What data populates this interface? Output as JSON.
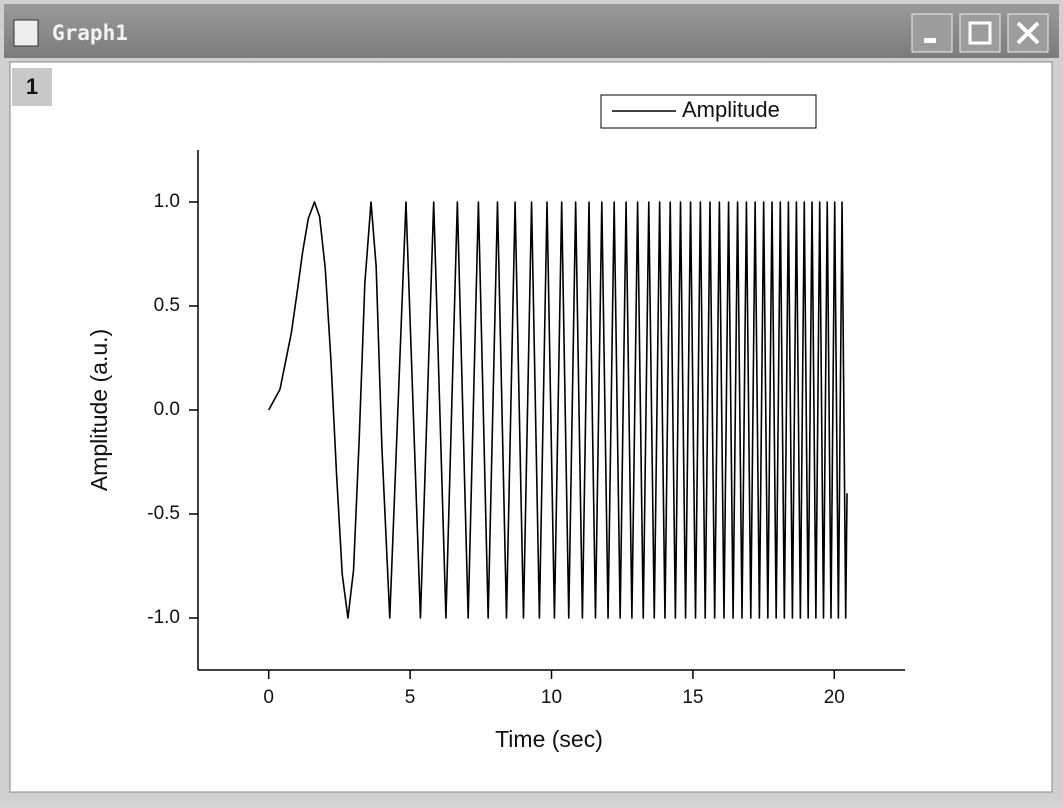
{
  "window": {
    "title": "Graph1",
    "layer": "1"
  },
  "chart_data": {
    "type": "line",
    "x_label": "Time (sec)",
    "y_label": "Amplitude (a.u.)",
    "x": [
      0,
      0.4,
      0.8,
      1.0,
      1.2,
      1.4,
      1.618,
      1.8,
      2.0,
      2.2,
      2.4,
      2.6,
      2.802,
      3.0,
      3.2,
      3.4,
      3.618,
      3.8,
      4.0,
      4.281,
      4.854,
      5.366,
      5.834,
      6.267,
      6.671,
      7.053,
      7.415,
      7.76,
      8.09,
      8.408,
      8.713,
      9.009,
      9.295,
      9.572,
      9.842,
      10.104,
      10.36,
      10.61,
      10.854,
      11.093,
      11.326,
      11.555,
      11.779,
      12.0,
      12.216,
      12.428,
      12.637,
      12.843,
      13.045,
      13.244,
      13.44,
      13.634,
      13.824,
      14.012,
      14.198,
      14.381,
      14.562,
      14.741,
      14.917,
      15.092,
      15.264,
      15.435,
      15.604,
      15.77,
      15.936,
      16.099,
      16.261,
      16.421,
      16.58,
      16.737,
      16.893,
      17.047,
      17.2,
      17.351,
      17.502,
      17.65,
      17.798,
      17.945,
      18.09,
      18.234,
      18.377,
      18.519,
      18.66,
      18.8,
      18.938,
      19.076,
      19.213,
      19.349,
      19.484,
      19.618,
      19.75,
      19.883,
      20.014,
      20.144,
      20.274,
      20.403,
      20.45
    ],
    "series": [
      {
        "name": "Amplitude",
        "color": "#000000",
        "values": [
          0,
          0.1,
          0.37,
          0.56,
          0.76,
          0.92,
          1,
          0.93,
          0.68,
          0.24,
          -0.31,
          -0.79,
          -1,
          -0.77,
          -0.14,
          0.61,
          1,
          0.69,
          -0.17,
          -1,
          1,
          -1,
          1,
          -1,
          1,
          -1,
          1,
          -1,
          1,
          -1,
          1,
          -1,
          1,
          -1,
          1,
          -1,
          1,
          -1,
          1,
          -1,
          1,
          -1,
          1,
          -1,
          1,
          -1,
          1,
          -1,
          1,
          -1,
          1,
          -1,
          1,
          -1,
          1,
          -1,
          1,
          -1,
          1,
          -1,
          1,
          -1,
          1,
          -1,
          1,
          -1,
          1,
          -1,
          1,
          -1,
          1,
          -1,
          1,
          -1,
          1,
          -1,
          1,
          -1,
          1,
          -1,
          1,
          -1,
          1,
          -1,
          1,
          -1,
          1,
          -1,
          1,
          -1,
          1,
          -1,
          1,
          -1,
          1,
          -1,
          -0.4
        ]
      }
    ],
    "xlim": [
      -2.5,
      22.5
    ],
    "ylim": [
      -1.25,
      1.25
    ],
    "xticks": [
      0,
      5,
      10,
      15,
      20
    ],
    "yticks": [
      {
        "value": -1,
        "label": "-1.0"
      },
      {
        "value": -0.5,
        "label": "-0.5"
      },
      {
        "value": 0,
        "label": "0.0"
      },
      {
        "value": 0.5,
        "label": "0.5"
      },
      {
        "value": 1,
        "label": "1.0"
      }
    ],
    "legend": "top-right"
  }
}
